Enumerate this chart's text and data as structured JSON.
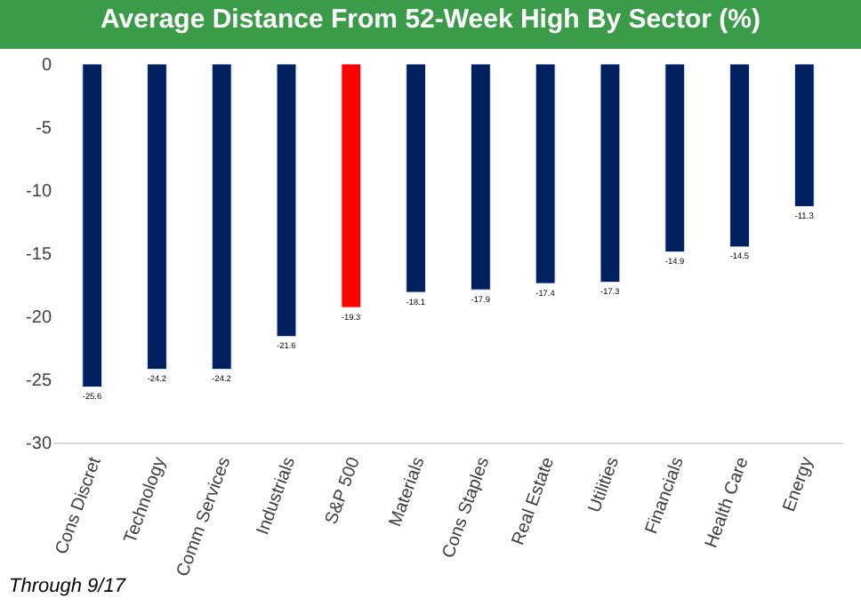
{
  "chart_data": {
    "type": "bar",
    "title": "Average Distance From 52-Week High By Sector (%)",
    "categories": [
      "Cons Discret",
      "Technology",
      "Comm Services",
      "Industrials",
      "S&P 500",
      "Materials",
      "Cons Staples",
      "Real Estate",
      "Utilities",
      "Financials",
      "Health Care",
      "Energy"
    ],
    "values": [
      -25.6,
      -24.2,
      -24.2,
      -21.6,
      -19.3,
      -18.1,
      -17.9,
      -17.4,
      -17.3,
      -14.9,
      -14.5,
      -11.3
    ],
    "colors": [
      "#002060",
      "#002060",
      "#002060",
      "#002060",
      "#ff0000",
      "#002060",
      "#002060",
      "#002060",
      "#002060",
      "#002060",
      "#002060",
      "#002060"
    ],
    "ylim": [
      -30,
      0
    ],
    "yticks": [
      -30,
      -25,
      -20,
      -15,
      -10,
      -5,
      0
    ],
    "data_labels": true,
    "annotations": [
      "Through 9/17"
    ]
  }
}
